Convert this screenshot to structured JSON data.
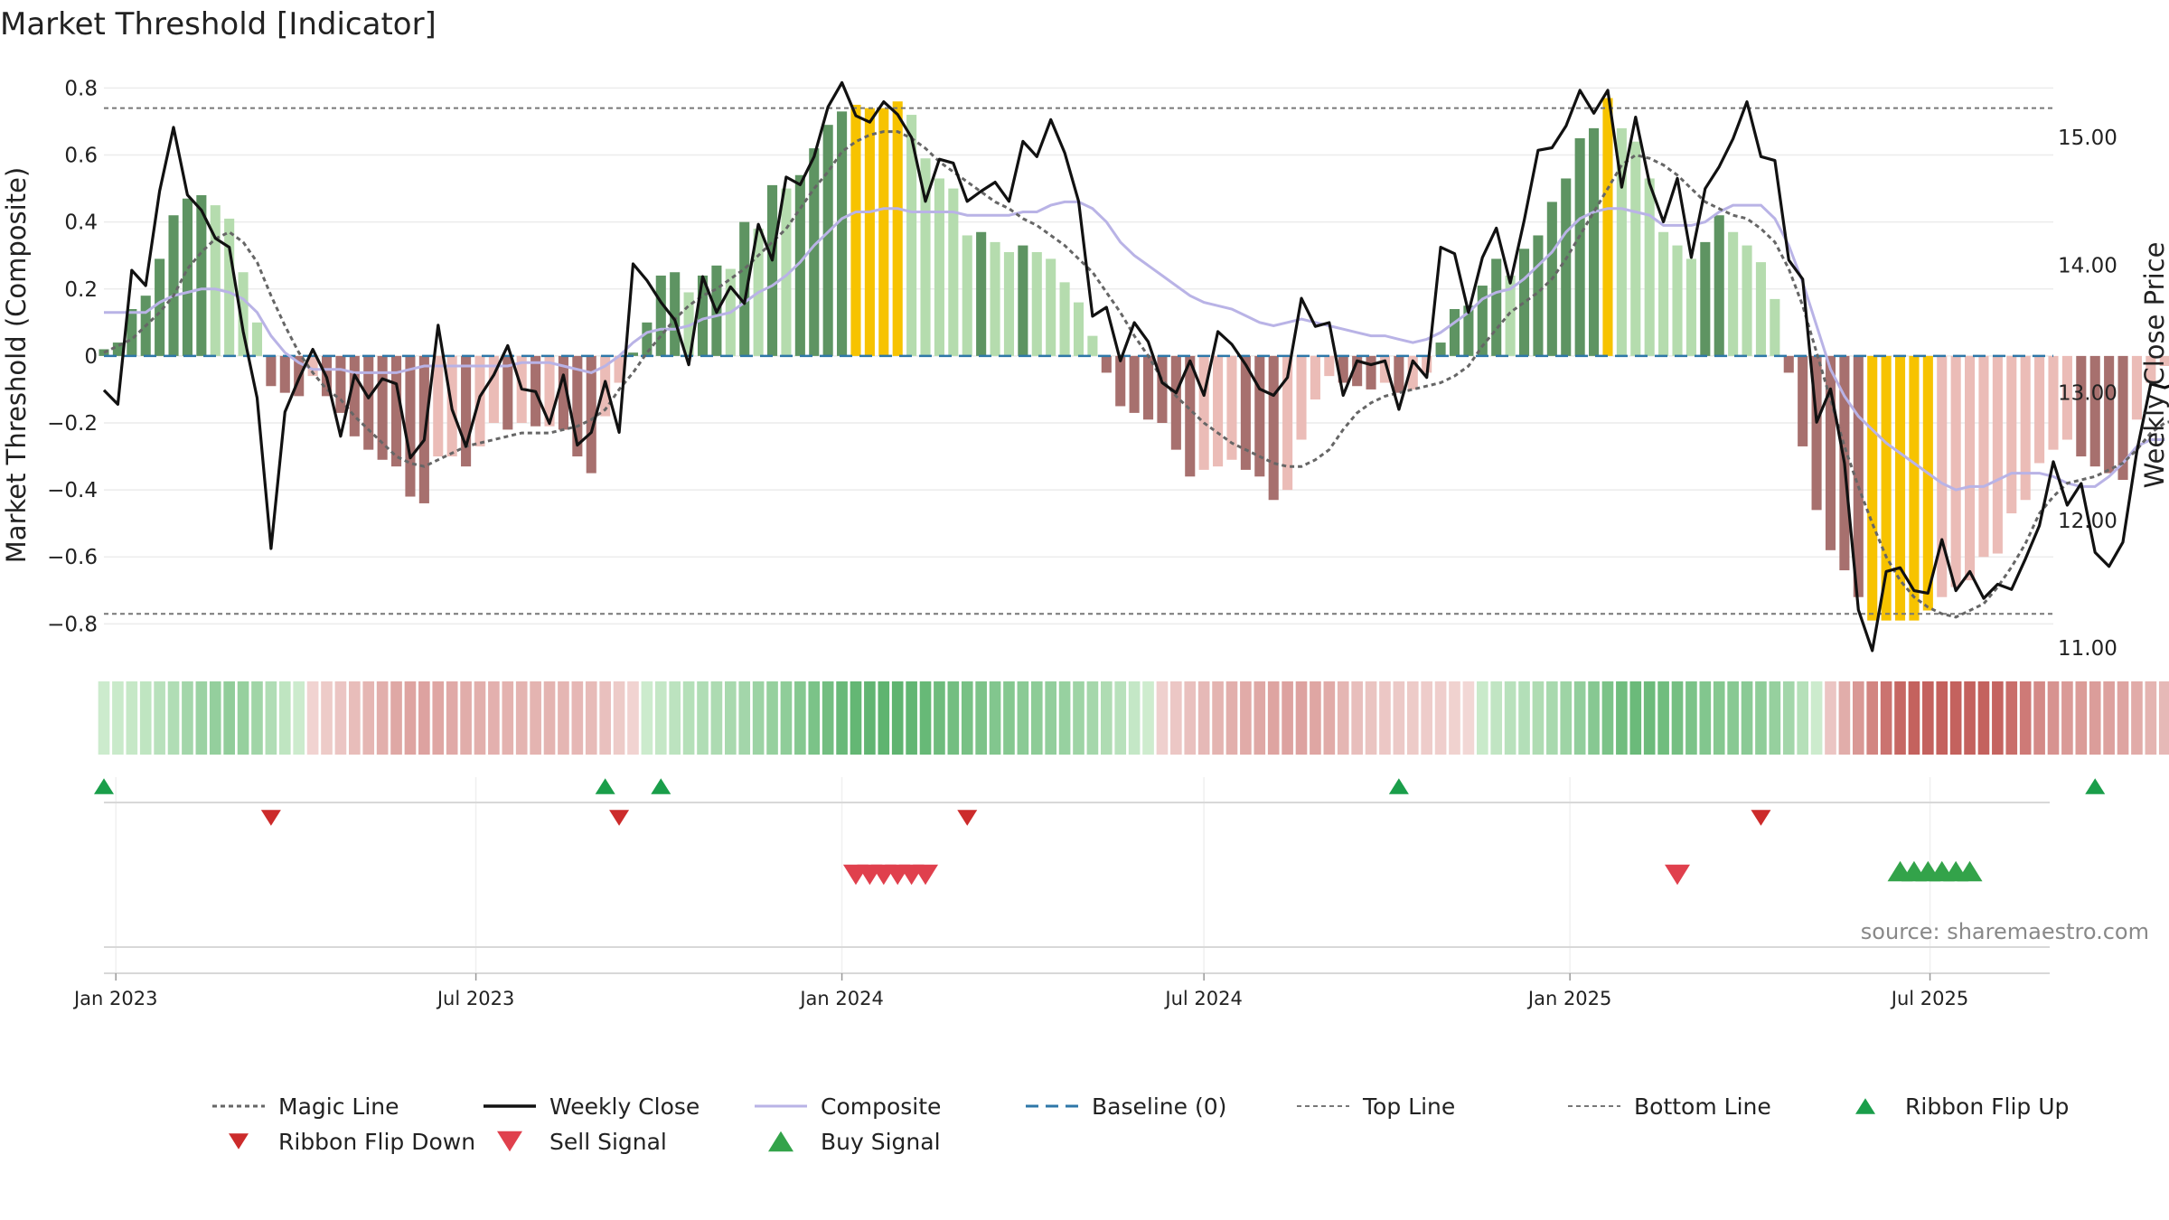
{
  "chart_data": {
    "type": "bar",
    "title": "Market Threshold [Indicator]",
    "ylabel": "Market Threshold (Composite)",
    "y2label": "Weekly Close Price",
    "ylim": [
      -0.88,
      0.82
    ],
    "y2lim": [
      10.98,
      15.44
    ],
    "y_ticks": [
      "0.8",
      "0.6",
      "0.4",
      "0.2",
      "0",
      "−0.2",
      "−0.4",
      "−0.6",
      "−0.8"
    ],
    "y_tick_values": [
      0.8,
      0.6,
      0.4,
      0.2,
      0,
      -0.2,
      -0.4,
      -0.6,
      -0.8
    ],
    "y2_ticks": [
      "15.00",
      "14.00",
      "13.00",
      "12.00",
      "11.00"
    ],
    "y2_tick_values": [
      15,
      14,
      13,
      12,
      11
    ],
    "x_range": [
      "2022-12-26",
      "2025-09-01"
    ],
    "x_ticks": [
      {
        "label": "Jan 2023",
        "date": "2023-01-01"
      },
      {
        "label": "Jul 2023",
        "date": "2023-07-01"
      },
      {
        "label": "Jan 2024",
        "date": "2024-01-01"
      },
      {
        "label": "Jul 2024",
        "date": "2024-07-01"
      },
      {
        "label": "Jan 2025",
        "date": "2025-01-01"
      },
      {
        "label": "Jul 2025",
        "date": "2025-07-01"
      }
    ],
    "first_week": "2022-12-26",
    "composite_bars": [
      0.02,
      0.04,
      0.14,
      0.18,
      0.29,
      0.42,
      0.47,
      0.48,
      0.45,
      0.41,
      0.25,
      0.1,
      -0.09,
      -0.11,
      -0.12,
      -0.06,
      -0.12,
      -0.17,
      -0.24,
      -0.28,
      -0.31,
      -0.33,
      -0.42,
      -0.44,
      -0.3,
      -0.3,
      -0.33,
      -0.27,
      -0.2,
      -0.22,
      -0.2,
      -0.21,
      -0.21,
      -0.22,
      -0.3,
      -0.35,
      -0.18,
      -0.08,
      0.01,
      0.1,
      0.24,
      0.25,
      0.19,
      0.24,
      0.27,
      0.26,
      0.4,
      0.38,
      0.51,
      0.5,
      0.54,
      0.62,
      0.69,
      0.73,
      0.75,
      0.74,
      0.74,
      0.76,
      0.72,
      0.59,
      0.53,
      0.5,
      0.36,
      0.37,
      0.34,
      0.31,
      0.33,
      0.31,
      0.29,
      0.22,
      0.16,
      0.06,
      -0.05,
      -0.15,
      -0.17,
      -0.19,
      -0.2,
      -0.28,
      -0.36,
      -0.34,
      -0.33,
      -0.31,
      -0.34,
      -0.36,
      -0.43,
      -0.4,
      -0.25,
      -0.13,
      -0.06,
      -0.08,
      -0.09,
      -0.1,
      -0.08,
      -0.11,
      -0.1,
      -0.05,
      0.04,
      0.14,
      0.15,
      0.21,
      0.29,
      0.24,
      0.32,
      0.36,
      0.46,
      0.53,
      0.65,
      0.68,
      0.77,
      0.68,
      0.64,
      0.53,
      0.37,
      0.33,
      0.29,
      0.34,
      0.42,
      0.37,
      0.33,
      0.28,
      0.17,
      -0.05,
      -0.27,
      -0.46,
      -0.58,
      -0.64,
      -0.72,
      -0.79,
      -0.79,
      -0.79,
      -0.79,
      -0.76,
      -0.72,
      -0.69,
      -0.67,
      -0.6,
      -0.59,
      -0.47,
      -0.43,
      -0.32,
      -0.28,
      -0.25,
      -0.3,
      -0.33,
      -0.35,
      -0.37,
      -0.19,
      -0.08,
      -0.03,
      -0.1,
      -0.12
    ],
    "weekly_close": [
      13.02,
      12.91,
      13.96,
      13.84,
      14.58,
      15.08,
      14.55,
      14.43,
      14.21,
      14.14,
      13.48,
      12.96,
      11.78,
      12.85,
      13.11,
      13.34,
      13.12,
      12.66,
      13.14,
      12.96,
      13.11,
      13.07,
      12.49,
      12.63,
      13.53,
      12.87,
      12.58,
      12.97,
      13.14,
      13.37,
      13.03,
      13.01,
      12.76,
      13.14,
      12.59,
      12.69,
      13.09,
      12.69,
      14.01,
      13.88,
      13.71,
      13.57,
      13.22,
      13.91,
      13.63,
      13.83,
      13.7,
      14.32,
      14.04,
      14.69,
      14.63,
      14.85,
      15.24,
      15.43,
      15.17,
      15.12,
      15.28,
      15.18,
      15.0,
      14.5,
      14.83,
      14.8,
      14.5,
      14.58,
      14.65,
      14.5,
      14.97,
      14.85,
      15.14,
      14.88,
      14.5,
      13.6,
      13.67,
      13.25,
      13.55,
      13.4,
      13.08,
      13.0,
      13.25,
      12.98,
      13.48,
      13.38,
      13.22,
      13.03,
      12.98,
      13.12,
      13.74,
      13.52,
      13.55,
      12.98,
      13.25,
      13.22,
      13.25,
      12.87,
      13.25,
      13.12,
      14.14,
      14.09,
      13.63,
      14.06,
      14.29,
      13.86,
      14.35,
      14.9,
      14.92,
      15.09,
      15.37,
      15.19,
      15.37,
      14.61,
      15.16,
      14.64,
      14.34,
      14.68,
      14.06,
      14.6,
      14.77,
      14.99,
      15.28,
      14.85,
      14.82,
      14.04,
      13.89,
      12.77,
      13.03,
      12.45,
      11.3,
      10.98,
      11.6,
      11.63,
      11.45,
      11.43,
      11.85,
      11.45,
      11.6,
      11.39,
      11.5,
      11.46,
      11.7,
      11.96,
      12.46,
      12.12,
      12.29,
      11.75,
      11.64,
      11.83,
      12.54,
      13.07,
      13.04,
      13.08,
      12.68,
      12.61
    ],
    "magic_line": [
      0.01,
      0.03,
      0.05,
      0.09,
      0.13,
      0.18,
      0.26,
      0.31,
      0.35,
      0.37,
      0.34,
      0.28,
      0.18,
      0.09,
      0.01,
      -0.05,
      -0.1,
      -0.13,
      -0.18,
      -0.22,
      -0.26,
      -0.3,
      -0.32,
      -0.33,
      -0.31,
      -0.29,
      -0.27,
      -0.26,
      -0.25,
      -0.24,
      -0.23,
      -0.23,
      -0.23,
      -0.22,
      -0.21,
      -0.19,
      -0.16,
      -0.1,
      -0.05,
      0.01,
      0.06,
      0.11,
      0.15,
      0.18,
      0.2,
      0.23,
      0.26,
      0.3,
      0.34,
      0.38,
      0.44,
      0.5,
      0.55,
      0.61,
      0.64,
      0.66,
      0.67,
      0.67,
      0.65,
      0.62,
      0.58,
      0.55,
      0.52,
      0.49,
      0.46,
      0.44,
      0.41,
      0.39,
      0.36,
      0.33,
      0.29,
      0.25,
      0.19,
      0.13,
      0.06,
      0,
      -0.07,
      -0.12,
      -0.16,
      -0.2,
      -0.23,
      -0.26,
      -0.28,
      -0.3,
      -0.32,
      -0.33,
      -0.33,
      -0.31,
      -0.28,
      -0.22,
      -0.17,
      -0.14,
      -0.12,
      -0.11,
      -0.1,
      -0.09,
      -0.08,
      -0.06,
      -0.03,
      0.03,
      0.08,
      0.13,
      0.16,
      0.19,
      0.23,
      0.29,
      0.36,
      0.43,
      0.5,
      0.57,
      0.6,
      0.59,
      0.57,
      0.54,
      0.5,
      0.46,
      0.44,
      0.42,
      0.41,
      0.38,
      0.34,
      0.26,
      0.15,
      0.01,
      -0.13,
      -0.27,
      -0.39,
      -0.5,
      -0.6,
      -0.67,
      -0.72,
      -0.75,
      -0.77,
      -0.78,
      -0.76,
      -0.74,
      -0.69,
      -0.63,
      -0.56,
      -0.47,
      -0.42,
      -0.38,
      -0.37,
      -0.36,
      -0.34,
      -0.32,
      -0.28,
      -0.23,
      -0.2,
      -0.19
    ],
    "composite_line": [
      0.13,
      0.13,
      0.13,
      0.13,
      0.16,
      0.18,
      0.19,
      0.2,
      0.2,
      0.19,
      0.17,
      0.13,
      0.06,
      0.01,
      -0.02,
      -0.04,
      -0.04,
      -0.04,
      -0.05,
      -0.05,
      -0.05,
      -0.05,
      -0.04,
      -0.03,
      -0.03,
      -0.03,
      -0.03,
      -0.03,
      -0.03,
      -0.03,
      -0.02,
      -0.02,
      -0.02,
      -0.03,
      -0.04,
      -0.05,
      -0.03,
      0,
      0.04,
      0.07,
      0.08,
      0.08,
      0.09,
      0.11,
      0.12,
      0.13,
      0.16,
      0.19,
      0.21,
      0.24,
      0.28,
      0.33,
      0.37,
      0.41,
      0.43,
      0.43,
      0.44,
      0.44,
      0.43,
      0.43,
      0.43,
      0.43,
      0.42,
      0.42,
      0.42,
      0.42,
      0.43,
      0.43,
      0.45,
      0.46,
      0.46,
      0.44,
      0.4,
      0.34,
      0.3,
      0.27,
      0.24,
      0.21,
      0.18,
      0.16,
      0.15,
      0.14,
      0.12,
      0.1,
      0.09,
      0.1,
      0.11,
      0.1,
      0.09,
      0.08,
      0.07,
      0.06,
      0.06,
      0.05,
      0.04,
      0.05,
      0.07,
      0.1,
      0.13,
      0.17,
      0.19,
      0.2,
      0.23,
      0.27,
      0.31,
      0.37,
      0.41,
      0.43,
      0.44,
      0.44,
      0.43,
      0.42,
      0.39,
      0.39,
      0.39,
      0.4,
      0.43,
      0.45,
      0.45,
      0.45,
      0.41,
      0.33,
      0.22,
      0.09,
      -0.04,
      -0.12,
      -0.18,
      -0.22,
      -0.26,
      -0.29,
      -0.32,
      -0.35,
      -0.38,
      -0.4,
      -0.39,
      -0.39,
      -0.37,
      -0.35,
      -0.35,
      -0.35,
      -0.36,
      -0.38,
      -0.39,
      -0.39,
      -0.36,
      -0.32,
      -0.27,
      -0.25,
      -0.25
    ],
    "top_line": 0.74,
    "bottom_line": -0.77,
    "baseline": 0,
    "signal_weeks": {
      "ribbon_flip_up": [
        0,
        36,
        40,
        93,
        143
      ],
      "ribbon_flip_down": [
        12,
        37,
        62,
        119
      ],
      "sell_signal": [
        54,
        55,
        56,
        57,
        58,
        59,
        113
      ],
      "buy_signal": [
        129,
        130,
        131,
        132,
        133,
        134
      ]
    },
    "legend": [
      "Magic Line",
      "Weekly Close",
      "Composite",
      "Baseline (0)",
      "Top Line",
      "Bottom Line",
      "Ribbon Flip Up",
      "Ribbon Flip Down",
      "Sell Signal",
      "Buy Signal"
    ],
    "annotation": "source: sharemaestro.com",
    "colors": {
      "pos_dark": "#5e9462",
      "pos_light": "#b5dcae",
      "neg_dark": "#a7706e",
      "neg_light": "#ebbcb7",
      "extreme": "#f7c300",
      "weekly_close": "#111111",
      "composite_line": "#b9b3e6",
      "magic_line": "#666666",
      "baseline": "#2e77a8",
      "threshold": "#777777",
      "flip_up": "#1a9e4a",
      "flip_down": "#cc2b2b",
      "sell": "#e0404d",
      "buy": "#33a34a"
    }
  }
}
